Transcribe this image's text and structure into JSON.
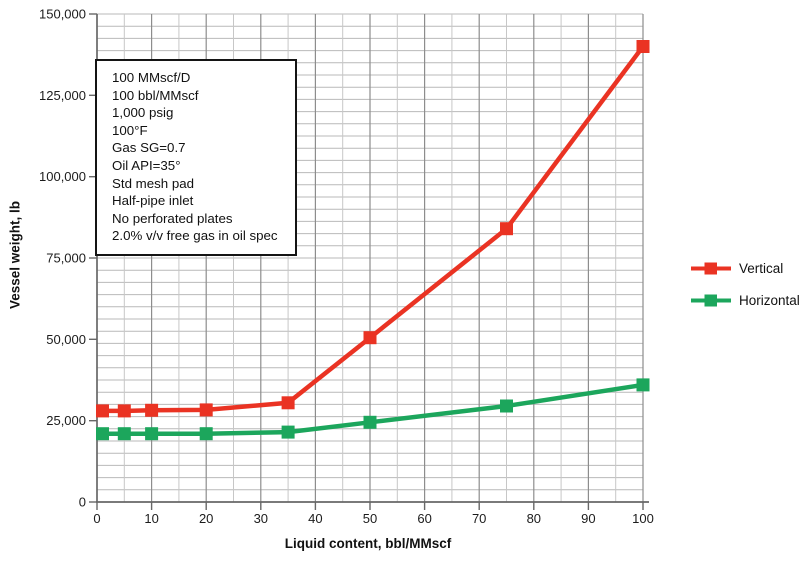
{
  "axes": {
    "x_label": "Liquid content, bbl/MMscf",
    "y_label": "Vessel weight, lb"
  },
  "annotation": {
    "lines": [
      "100 MMscf/D",
      "100 bbl/MMscf",
      "1,000 psig",
      "100°F",
      "Gas SG=0.7",
      "Oil API=35°",
      "Std mesh pad",
      "Half-pipe inlet",
      "No perforated plates",
      "2.0% v/v free gas in oil spec"
    ]
  },
  "legend": {
    "items": [
      {
        "label": "Vertical",
        "color": "#ea3323"
      },
      {
        "label": "Horizontal",
        "color": "#1ca65c"
      }
    ]
  },
  "chart_data": {
    "type": "line",
    "title": "",
    "xlabel": "Liquid content, bbl/MMscf",
    "ylabel": "Vessel weight, lb",
    "xlim": [
      0,
      100
    ],
    "ylim": [
      0,
      150000
    ],
    "x_ticks": [
      0,
      10,
      20,
      30,
      40,
      50,
      60,
      70,
      80,
      90,
      100
    ],
    "y_ticks": [
      0,
      25000,
      50000,
      75000,
      100000,
      125000,
      150000
    ],
    "y_tick_labels": [
      "0",
      "25,000",
      "50,000",
      "75,000",
      "100,000",
      "125,000",
      "150,000"
    ],
    "x_minor_step": 5,
    "y_minor_step": 3750,
    "grid": "fine graph-paper grid: vertical minor every 5 units, vertical major every 10 units, horizontal lines every 3,750 lb",
    "legend_position": "right-middle",
    "marker": "square",
    "x": [
      1,
      5,
      10,
      20,
      35,
      50,
      75,
      100
    ],
    "series": [
      {
        "name": "Vertical",
        "color": "#ea3323",
        "x": [
          1,
          5,
          10,
          20,
          35,
          50,
          75,
          100
        ],
        "y": [
          28000,
          28000,
          28200,
          28300,
          30500,
          50500,
          84000,
          140000
        ]
      },
      {
        "name": "Horizontal",
        "color": "#1ca65c",
        "x": [
          1,
          5,
          10,
          20,
          35,
          50,
          75,
          100
        ],
        "y": [
          21000,
          21000,
          21000,
          21000,
          21500,
          24500,
          29500,
          36000
        ]
      }
    ]
  }
}
